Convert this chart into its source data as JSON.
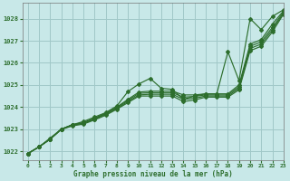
{
  "xlabel": "Graphe pression niveau de la mer (hPa)",
  "bg_color": "#c8e8e8",
  "grid_color": "#a0c8c8",
  "line_color": "#2d6e2d",
  "xlim": [
    -0.5,
    23
  ],
  "ylim": [
    1021.6,
    1028.7
  ],
  "yticks": [
    1022,
    1023,
    1024,
    1025,
    1026,
    1027,
    1028
  ],
  "xticks": [
    0,
    1,
    2,
    3,
    4,
    5,
    6,
    7,
    8,
    9,
    10,
    11,
    12,
    13,
    14,
    15,
    16,
    17,
    18,
    19,
    20,
    21,
    22,
    23
  ],
  "lines_y": [
    [
      1021.9,
      1022.2,
      1022.6,
      1023.0,
      1023.2,
      1023.35,
      1023.55,
      1023.75,
      1024.05,
      1024.7,
      1025.05,
      1025.3,
      1024.85,
      1024.8,
      1024.35,
      1024.5,
      1024.6,
      1024.6,
      1026.5,
      1025.2,
      1028.0,
      1027.5,
      1028.1,
      1028.4
    ],
    [
      1021.9,
      1022.2,
      1022.55,
      1023.0,
      1023.2,
      1023.3,
      1023.5,
      1023.72,
      1024.0,
      1024.35,
      1024.68,
      1024.72,
      1024.72,
      1024.72,
      1024.55,
      1024.55,
      1024.6,
      1024.6,
      1024.6,
      1025.0,
      1026.85,
      1027.05,
      1027.75,
      1028.35
    ],
    [
      1021.9,
      1022.2,
      1022.55,
      1023.0,
      1023.2,
      1023.28,
      1023.48,
      1023.7,
      1023.97,
      1024.3,
      1024.62,
      1024.65,
      1024.65,
      1024.65,
      1024.45,
      1024.48,
      1024.55,
      1024.55,
      1024.55,
      1024.92,
      1026.75,
      1026.95,
      1027.6,
      1028.3
    ],
    [
      1021.9,
      1022.2,
      1022.55,
      1023.0,
      1023.18,
      1023.26,
      1023.45,
      1023.67,
      1023.93,
      1024.25,
      1024.55,
      1024.58,
      1024.58,
      1024.58,
      1024.35,
      1024.4,
      1024.5,
      1024.5,
      1024.5,
      1024.85,
      1026.65,
      1026.85,
      1027.5,
      1028.25
    ],
    [
      1021.9,
      1022.2,
      1022.55,
      1022.98,
      1023.15,
      1023.23,
      1023.42,
      1023.63,
      1023.9,
      1024.2,
      1024.5,
      1024.5,
      1024.5,
      1024.5,
      1024.25,
      1024.32,
      1024.45,
      1024.45,
      1024.45,
      1024.78,
      1026.55,
      1026.75,
      1027.4,
      1028.2
    ]
  ]
}
